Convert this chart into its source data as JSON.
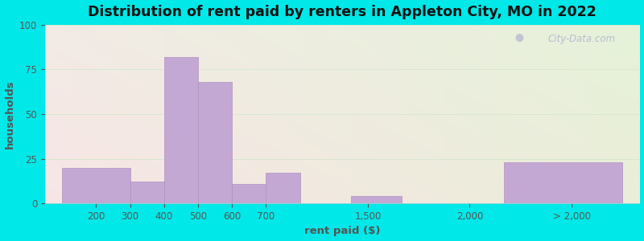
{
  "title": "Distribution of rent paid by renters in Appleton City, MO in 2022",
  "xlabel": "rent paid ($)",
  "ylabel": "households",
  "bar_labels": [
    "200",
    "300",
    "400",
    "500",
    "600",
    "700",
    "1,500",
    "2,000",
    "> 2,000"
  ],
  "bar_values": [
    20,
    12,
    82,
    68,
    11,
    17,
    4,
    0,
    23
  ],
  "bar_color": "#c4a8d4",
  "bar_edgecolor": "#b090c0",
  "ylim": [
    0,
    100
  ],
  "yticks": [
    0,
    25,
    50,
    75,
    100
  ],
  "bg_color_fig": "#00e8e8",
  "title_fontsize": 12.5,
  "axis_label_fontsize": 9.5,
  "tick_fontsize": 8.5,
  "watermark_text": "City-Data.com"
}
